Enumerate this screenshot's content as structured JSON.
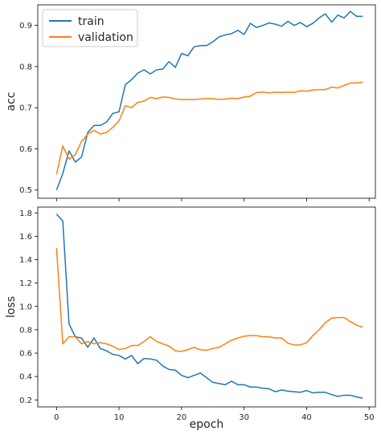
{
  "chart_data": [
    {
      "type": "line",
      "ylabel": "acc",
      "xlabel": "",
      "xlim": [
        -3,
        51
      ],
      "ylim": [
        0.48,
        0.95
      ],
      "xticks": [
        0,
        10,
        20,
        30,
        40,
        50
      ],
      "yticks": [
        0.5,
        0.6,
        0.7,
        0.8,
        0.9
      ],
      "ytick_labels": [
        "0.5",
        "0.6",
        "0.7",
        "0.8",
        "0.9"
      ],
      "show_xtick_labels": false,
      "legend": "top-left",
      "series": [
        {
          "name": "train",
          "color": "#1f77b4",
          "values": [
            0.5,
            0.54,
            0.595,
            0.568,
            0.58,
            0.64,
            0.657,
            0.657,
            0.665,
            0.686,
            0.69,
            0.756,
            0.768,
            0.784,
            0.792,
            0.782,
            0.792,
            0.794,
            0.812,
            0.798,
            0.832,
            0.826,
            0.848,
            0.851,
            0.851,
            0.86,
            0.872,
            0.877,
            0.88,
            0.888,
            0.878,
            0.905,
            0.895,
            0.9,
            0.906,
            0.903,
            0.898,
            0.91,
            0.9,
            0.907,
            0.897,
            0.905,
            0.918,
            0.928,
            0.908,
            0.925,
            0.918,
            0.934,
            0.922,
            0.922
          ]
        },
        {
          "name": "validation",
          "color": "#ff7f0e",
          "values": [
            0.538,
            0.607,
            0.575,
            0.586,
            0.618,
            0.636,
            0.645,
            0.636,
            0.64,
            0.652,
            0.668,
            0.705,
            0.7,
            0.713,
            0.716,
            0.725,
            0.722,
            0.726,
            0.725,
            0.721,
            0.72,
            0.72,
            0.72,
            0.721,
            0.722,
            0.722,
            0.72,
            0.721,
            0.723,
            0.722,
            0.726,
            0.728,
            0.737,
            0.738,
            0.736,
            0.738,
            0.737,
            0.738,
            0.737,
            0.741,
            0.74,
            0.743,
            0.744,
            0.744,
            0.75,
            0.748,
            0.754,
            0.76,
            0.76,
            0.762
          ]
        }
      ]
    },
    {
      "type": "line",
      "ylabel": "loss",
      "xlabel": "epoch",
      "xlim": [
        -3,
        51
      ],
      "ylim": [
        0.14,
        1.85
      ],
      "xticks": [
        0,
        10,
        20,
        30,
        40,
        50
      ],
      "xtick_labels": [
        "0",
        "10",
        "20",
        "30",
        "40",
        "50"
      ],
      "yticks": [
        0.2,
        0.4,
        0.6,
        0.8,
        1.0,
        1.2,
        1.4,
        1.6,
        1.8
      ],
      "ytick_labels": [
        "0.2",
        "0.4",
        "0.6",
        "0.8",
        "1.0",
        "1.2",
        "1.4",
        "1.6",
        "1.8"
      ],
      "show_xtick_labels": true,
      "series": [
        {
          "name": "train",
          "color": "#1f77b4",
          "values": [
            1.79,
            1.73,
            0.85,
            0.74,
            0.73,
            0.65,
            0.73,
            0.64,
            0.62,
            0.59,
            0.58,
            0.55,
            0.58,
            0.51,
            0.555,
            0.55,
            0.54,
            0.49,
            0.46,
            0.455,
            0.41,
            0.39,
            0.41,
            0.43,
            0.39,
            0.35,
            0.34,
            0.33,
            0.36,
            0.33,
            0.33,
            0.31,
            0.31,
            0.3,
            0.295,
            0.27,
            0.285,
            0.275,
            0.27,
            0.265,
            0.28,
            0.26,
            0.265,
            0.265,
            0.245,
            0.23,
            0.24,
            0.24,
            0.225,
            0.215
          ]
        },
        {
          "name": "validation",
          "color": "#ff7f0e",
          "values": [
            1.5,
            0.68,
            0.74,
            0.74,
            0.68,
            0.7,
            0.68,
            0.69,
            0.68,
            0.66,
            0.63,
            0.64,
            0.665,
            0.665,
            0.7,
            0.74,
            0.7,
            0.68,
            0.66,
            0.62,
            0.615,
            0.63,
            0.65,
            0.63,
            0.625,
            0.64,
            0.65,
            0.68,
            0.71,
            0.73,
            0.745,
            0.75,
            0.75,
            0.74,
            0.74,
            0.73,
            0.73,
            0.685,
            0.67,
            0.67,
            0.69,
            0.75,
            0.8,
            0.86,
            0.9,
            0.905,
            0.905,
            0.87,
            0.84,
            0.82
          ]
        }
      ]
    }
  ]
}
